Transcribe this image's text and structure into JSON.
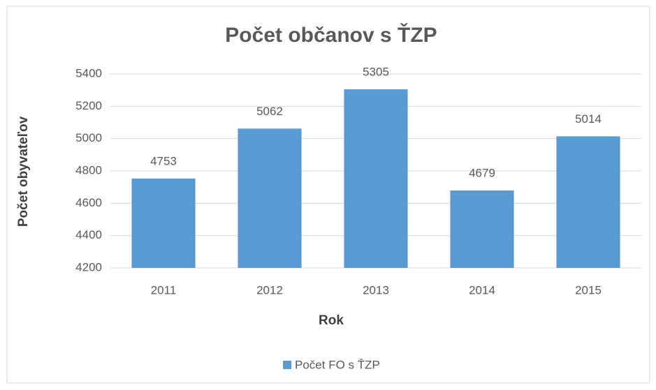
{
  "chart_data": {
    "type": "bar",
    "title": "Počet občanov s ŤZP",
    "x_label": "Rok",
    "y_label": "Počet obyvateľov",
    "categories": [
      "2011",
      "2012",
      "2013",
      "2014",
      "2015"
    ],
    "series": [
      {
        "name": "Počet FO s ŤZP",
        "color": "#5b9bd5",
        "values": [
          4753,
          5062,
          5305,
          4679,
          5014
        ]
      }
    ],
    "ylim": [
      4200,
      5400
    ],
    "yticks": [
      4200,
      4400,
      4600,
      4800,
      5000,
      5200,
      5400
    ],
    "grid": true,
    "legend": "bottom"
  }
}
